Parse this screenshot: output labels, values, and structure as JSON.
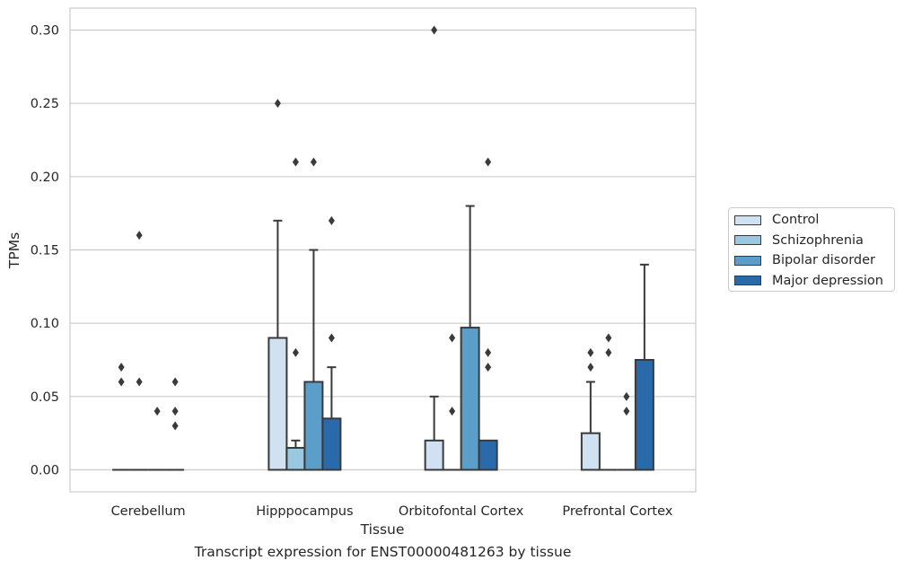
{
  "caption": "Transcript expression for ENST00000481263 by tissue",
  "chart_data": {
    "type": "box",
    "xlabel": "Tissue",
    "ylabel": "TPMs",
    "ylim": [
      -0.015,
      0.315
    ],
    "yticks": [
      0.0,
      0.05,
      0.1,
      0.15,
      0.2,
      0.25,
      0.3
    ],
    "ytick_labels": [
      "0.00",
      "0.05",
      "0.10",
      "0.15",
      "0.20",
      "0.25",
      "0.30"
    ],
    "grid": "horizontal",
    "legend_position": "right",
    "categories": [
      "Cerebellum",
      "Hipppocampus",
      "Orbitofontal Cortex",
      "Prefrontal Cortex"
    ],
    "series": [
      {
        "name": "Control",
        "color": "#d0e1f2",
        "boxes": [
          {
            "q1": 0.0,
            "median": 0.0,
            "q3": 0.0,
            "whisker_low": 0.0,
            "whisker_high": 0.0,
            "outliers": [
              0.07,
              0.06
            ]
          },
          {
            "q1": 0.0,
            "median": 0.0,
            "q3": 0.09,
            "whisker_low": 0.0,
            "whisker_high": 0.17,
            "outliers": [
              0.25
            ]
          },
          {
            "q1": 0.0,
            "median": 0.0,
            "q3": 0.02,
            "whisker_low": 0.0,
            "whisker_high": 0.05,
            "outliers": [
              0.3
            ]
          },
          {
            "q1": 0.0,
            "median": 0.0,
            "q3": 0.025,
            "whisker_low": 0.0,
            "whisker_high": 0.06,
            "outliers": [
              0.08,
              0.07
            ]
          }
        ]
      },
      {
        "name": "Schizophrenia",
        "color": "#9ac8e0",
        "boxes": [
          {
            "q1": 0.0,
            "median": 0.0,
            "q3": 0.0,
            "whisker_low": 0.0,
            "whisker_high": 0.0,
            "outliers": [
              0.16,
              0.06
            ]
          },
          {
            "q1": 0.0,
            "median": 0.0,
            "q3": 0.015,
            "whisker_low": 0.0,
            "whisker_high": 0.02,
            "outliers": [
              0.21,
              0.08
            ]
          },
          {
            "q1": 0.0,
            "median": 0.0,
            "q3": 0.0,
            "whisker_low": 0.0,
            "whisker_high": 0.0,
            "outliers": [
              0.09,
              0.04
            ]
          },
          {
            "q1": 0.0,
            "median": 0.0,
            "q3": 0.0,
            "whisker_low": 0.0,
            "whisker_high": 0.0,
            "outliers": [
              0.09,
              0.08
            ]
          }
        ]
      },
      {
        "name": "Bipolar disorder",
        "color": "#5a9ec9",
        "boxes": [
          {
            "q1": 0.0,
            "median": 0.0,
            "q3": 0.0,
            "whisker_low": 0.0,
            "whisker_high": 0.0,
            "outliers": [
              0.04
            ]
          },
          {
            "q1": 0.0,
            "median": 0.0,
            "q3": 0.06,
            "whisker_low": 0.0,
            "whisker_high": 0.15,
            "outliers": [
              0.21
            ]
          },
          {
            "q1": 0.0,
            "median": 0.0,
            "q3": 0.097,
            "whisker_low": 0.0,
            "whisker_high": 0.18,
            "outliers": []
          },
          {
            "q1": 0.0,
            "median": 0.0,
            "q3": 0.0,
            "whisker_low": 0.0,
            "whisker_high": 0.0,
            "outliers": [
              0.05,
              0.04
            ]
          }
        ]
      },
      {
        "name": "Major depression",
        "color": "#2a6aab",
        "boxes": [
          {
            "q1": 0.0,
            "median": 0.0,
            "q3": 0.0,
            "whisker_low": 0.0,
            "whisker_high": 0.0,
            "outliers": [
              0.06,
              0.04,
              0.03
            ]
          },
          {
            "q1": 0.0,
            "median": 0.0,
            "q3": 0.035,
            "whisker_low": 0.0,
            "whisker_high": 0.07,
            "outliers": [
              0.17,
              0.09
            ]
          },
          {
            "q1": 0.0,
            "median": 0.0,
            "q3": 0.02,
            "whisker_low": 0.0,
            "whisker_high": 0.02,
            "outliers": [
              0.21,
              0.08,
              0.07
            ]
          },
          {
            "q1": 0.0,
            "median": 0.0,
            "q3": 0.075,
            "whisker_low": 0.0,
            "whisker_high": 0.14,
            "outliers": []
          }
        ]
      }
    ]
  }
}
